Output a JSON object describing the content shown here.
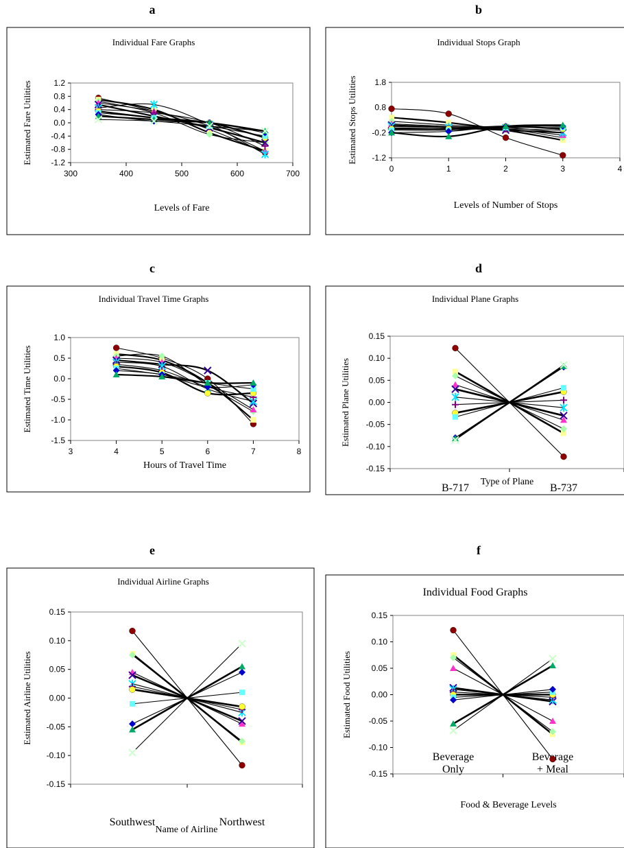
{
  "panels": [
    {
      "id": "a",
      "panel_label": "a",
      "chart_data": {
        "type": "line",
        "title": "Individual Fare Graphs",
        "xlabel": "Levels of Fare",
        "ylabel": "Estimated Fare Utilities",
        "x": [
          350,
          450,
          550,
          650
        ],
        "xticks": [
          300,
          400,
          500,
          600,
          700
        ],
        "xlim": [
          300,
          700
        ],
        "yticks": [
          1.2,
          0.8,
          0.4,
          0.0,
          -0.4,
          -0.8,
          -1.2
        ],
        "yticklabels": [
          "1.2",
          "0.8",
          "0.4",
          "0.0",
          "-0.4",
          "-0.8",
          "-1.2"
        ],
        "ylim": [
          -1.2,
          1.2
        ],
        "grid": false,
        "series": [
          {
            "values": [
              0.75,
              0.35,
              -0.2,
              -0.9
            ]
          },
          {
            "values": [
              0.7,
              0.4,
              -0.3,
              -0.85
            ]
          },
          {
            "values": [
              0.65,
              0.3,
              -0.35,
              -0.6
            ]
          },
          {
            "values": [
              0.6,
              0.35,
              -0.1,
              -0.85
            ]
          },
          {
            "values": [
              0.55,
              0.2,
              -0.15,
              -0.6
            ]
          },
          {
            "values": [
              0.45,
              0.55,
              -0.05,
              -0.95
            ]
          },
          {
            "values": [
              0.4,
              0.3,
              0.0,
              -0.7
            ]
          },
          {
            "values": [
              0.35,
              0.15,
              0.0,
              -0.45
            ]
          },
          {
            "values": [
              0.3,
              0.15,
              -0.1,
              -0.4
            ]
          },
          {
            "values": [
              0.25,
              0.05,
              0.0,
              -0.3
            ]
          },
          {
            "values": [
              0.2,
              0.1,
              0.0,
              -0.25
            ]
          },
          {
            "values": [
              0.1,
              0.05,
              -0.1,
              -0.25
            ]
          }
        ]
      }
    },
    {
      "id": "b",
      "panel_label": "b",
      "chart_data": {
        "type": "line",
        "title": "Individual Stops Graph",
        "xlabel": "Levels of Number of Stops",
        "ylabel": "Estimated Stops Utilities",
        "x": [
          0,
          1,
          2,
          3
        ],
        "xticks": [
          0,
          1,
          2,
          3,
          4
        ],
        "xlim": [
          0,
          4
        ],
        "yticks": [
          1.8,
          0.8,
          -0.2,
          -1.2
        ],
        "yticklabels": [
          "1.8",
          "0.8",
          "-0.2",
          "-1.2"
        ],
        "ylim": [
          -1.2,
          1.8
        ],
        "grid": false,
        "series": [
          {
            "values": [
              0.75,
              0.55,
              -0.4,
              -1.1
            ]
          },
          {
            "values": [
              0.4,
              0.2,
              -0.1,
              -0.5
            ]
          },
          {
            "values": [
              0.25,
              0.1,
              -0.05,
              -0.4
            ]
          },
          {
            "values": [
              0.15,
              0.05,
              -0.05,
              -0.3
            ]
          },
          {
            "values": [
              0.1,
              0.0,
              -0.1,
              -0.2
            ]
          },
          {
            "values": [
              0.05,
              0.0,
              0.0,
              -0.2
            ]
          },
          {
            "values": [
              0.0,
              -0.05,
              -0.05,
              -0.1
            ]
          },
          {
            "values": [
              -0.05,
              -0.05,
              0.05,
              -0.05
            ]
          },
          {
            "values": [
              -0.1,
              -0.1,
              0.0,
              0.0
            ]
          },
          {
            "values": [
              -0.2,
              -0.15,
              0.05,
              0.05
            ]
          },
          {
            "values": [
              -0.2,
              -0.35,
              0.05,
              0.1
            ]
          }
        ]
      }
    },
    {
      "id": "c",
      "panel_label": "c",
      "chart_data": {
        "type": "line",
        "title": "Individual Travel Time Graphs",
        "xlabel": "Hours of Travel Time",
        "ylabel": "Estimated Time Utilities",
        "x": [
          4,
          5,
          6,
          7
        ],
        "xticks": [
          3,
          4,
          5,
          6,
          7,
          8
        ],
        "xlim": [
          3,
          8
        ],
        "yticks": [
          1.0,
          0.5,
          0.0,
          -0.5,
          -1.0,
          -1.5
        ],
        "yticklabels": [
          "1.0",
          "0.5",
          "0.0",
          "-0.5",
          "-1.0",
          "-1.5"
        ],
        "ylim": [
          -1.5,
          1.0
        ],
        "grid": false,
        "series": [
          {
            "values": [
              0.75,
              0.5,
              0.0,
              -1.1
            ]
          },
          {
            "values": [
              0.6,
              0.45,
              -0.1,
              -1.0
            ]
          },
          {
            "values": [
              0.55,
              0.55,
              -0.15,
              -0.8
            ]
          },
          {
            "values": [
              0.5,
              0.4,
              -0.1,
              -0.75
            ]
          },
          {
            "values": [
              0.45,
              0.35,
              0.2,
              -0.6
            ]
          },
          {
            "values": [
              0.4,
              0.3,
              -0.25,
              -0.55
            ]
          },
          {
            "values": [
              0.35,
              0.2,
              -0.2,
              -0.45
            ]
          },
          {
            "values": [
              0.3,
              0.15,
              -0.35,
              -0.35
            ]
          },
          {
            "values": [
              0.25,
              0.1,
              -0.1,
              -0.25
            ]
          },
          {
            "values": [
              0.2,
              0.1,
              -0.2,
              -0.15
            ]
          },
          {
            "values": [
              0.1,
              0.05,
              -0.1,
              -0.1
            ]
          }
        ]
      }
    },
    {
      "id": "d",
      "panel_label": "d",
      "chart_data": {
        "type": "line",
        "title": "Individual Plane Graphs",
        "xlabel": "Type of Plane",
        "ylabel": "Estimated Plane Utilities",
        "categories": [
          "B-717",
          "B-737"
        ],
        "yticks": [
          0.15,
          0.1,
          0.05,
          0.0,
          -0.05,
          -0.1,
          -0.15
        ],
        "yticklabels": [
          "0.15",
          "0.10",
          "0.05",
          "0.00",
          "-0.05",
          "-0.10",
          "-0.15"
        ],
        "ylim": [
          -0.15,
          0.15
        ],
        "grid": false,
        "series": [
          {
            "values": [
              0.123,
              -0.123
            ]
          },
          {
            "values": [
              0.07,
              -0.07
            ]
          },
          {
            "values": [
              0.06,
              -0.06
            ]
          },
          {
            "values": [
              0.04,
              -0.04
            ]
          },
          {
            "values": [
              0.03,
              -0.03
            ]
          },
          {
            "values": [
              0.012,
              -0.012
            ]
          },
          {
            "values": [
              -0.005,
              0.005
            ]
          },
          {
            "values": [
              -0.024,
              0.024
            ]
          },
          {
            "values": [
              -0.033,
              0.033
            ]
          },
          {
            "values": [
              -0.08,
              0.08
            ]
          },
          {
            "values": [
              -0.082,
              0.082
            ]
          },
          {
            "values": [
              -0.085,
              0.085
            ]
          }
        ]
      }
    },
    {
      "id": "e",
      "panel_label": "e",
      "chart_data": {
        "type": "line",
        "title": "Individual Airline Graphs",
        "xlabel": "Name of Airline",
        "ylabel": "Estimated Airline Utilities",
        "categories": [
          "Southwest",
          "Northwest"
        ],
        "yticks": [
          0.15,
          0.1,
          0.05,
          0.0,
          -0.05,
          -0.1,
          -0.15
        ],
        "yticklabels": [
          "0.15",
          "0.10",
          "0.05",
          "0.00",
          "-0.05",
          "-0.10",
          "-0.15"
        ],
        "ylim": [
          -0.15,
          0.15
        ],
        "grid": false,
        "series": [
          {
            "values": [
              0.117,
              -0.117
            ]
          },
          {
            "values": [
              0.077,
              -0.077
            ]
          },
          {
            "values": [
              0.075,
              -0.075
            ]
          },
          {
            "values": [
              0.045,
              -0.045
            ]
          },
          {
            "values": [
              0.04,
              -0.04
            ]
          },
          {
            "values": [
              0.025,
              -0.025
            ]
          },
          {
            "values": [
              0.02,
              -0.02
            ]
          },
          {
            "values": [
              0.015,
              -0.015
            ]
          },
          {
            "values": [
              -0.01,
              0.01
            ]
          },
          {
            "values": [
              -0.045,
              0.045
            ]
          },
          {
            "values": [
              -0.055,
              0.055
            ]
          },
          {
            "values": [
              -0.095,
              0.095
            ]
          }
        ]
      }
    },
    {
      "id": "f",
      "panel_label": "f",
      "chart_data": {
        "type": "line",
        "title": "Individual Food Graphs",
        "xlabel": "Food & Beverage Levels",
        "ylabel": "Estimated Food Utilities",
        "categories": [
          "Beverage Only",
          "Beverage + Meal"
        ],
        "category_lines": [
          [
            "Beverage",
            "Only"
          ],
          [
            "Beverage",
            "+ Meal"
          ]
        ],
        "yticks": [
          0.15,
          0.1,
          0.05,
          0.0,
          -0.05,
          -0.1,
          -0.15
        ],
        "yticklabels": [
          "0.15",
          "0.10",
          "0.05",
          "0.00",
          "-0.05",
          "-0.10",
          "-0.15"
        ],
        "ylim": [
          -0.15,
          0.15
        ],
        "grid": false,
        "series": [
          {
            "values": [
              0.122,
              -0.122
            ]
          },
          {
            "values": [
              0.075,
              -0.075
            ]
          },
          {
            "values": [
              0.07,
              -0.07
            ]
          },
          {
            "values": [
              0.05,
              -0.05
            ]
          },
          {
            "values": [
              0.013,
              -0.013
            ]
          },
          {
            "values": [
              0.01,
              -0.01
            ]
          },
          {
            "values": [
              0.005,
              -0.005
            ]
          },
          {
            "values": [
              0.0,
              0.0
            ]
          },
          {
            "values": [
              -0.005,
              0.005
            ]
          },
          {
            "values": [
              -0.01,
              0.01
            ]
          },
          {
            "values": [
              -0.055,
              0.055
            ]
          },
          {
            "values": [
              -0.068,
              0.068
            ]
          }
        ]
      }
    }
  ],
  "marker_palette": [
    "#8b0000",
    "#ffff99",
    "#aaffaa",
    "#ff33cc",
    "#330099",
    "#00e5ff",
    "#800080",
    "#ffff33",
    "#66ffff",
    "#0000cc",
    "#00aa66",
    "#ccffcc"
  ]
}
